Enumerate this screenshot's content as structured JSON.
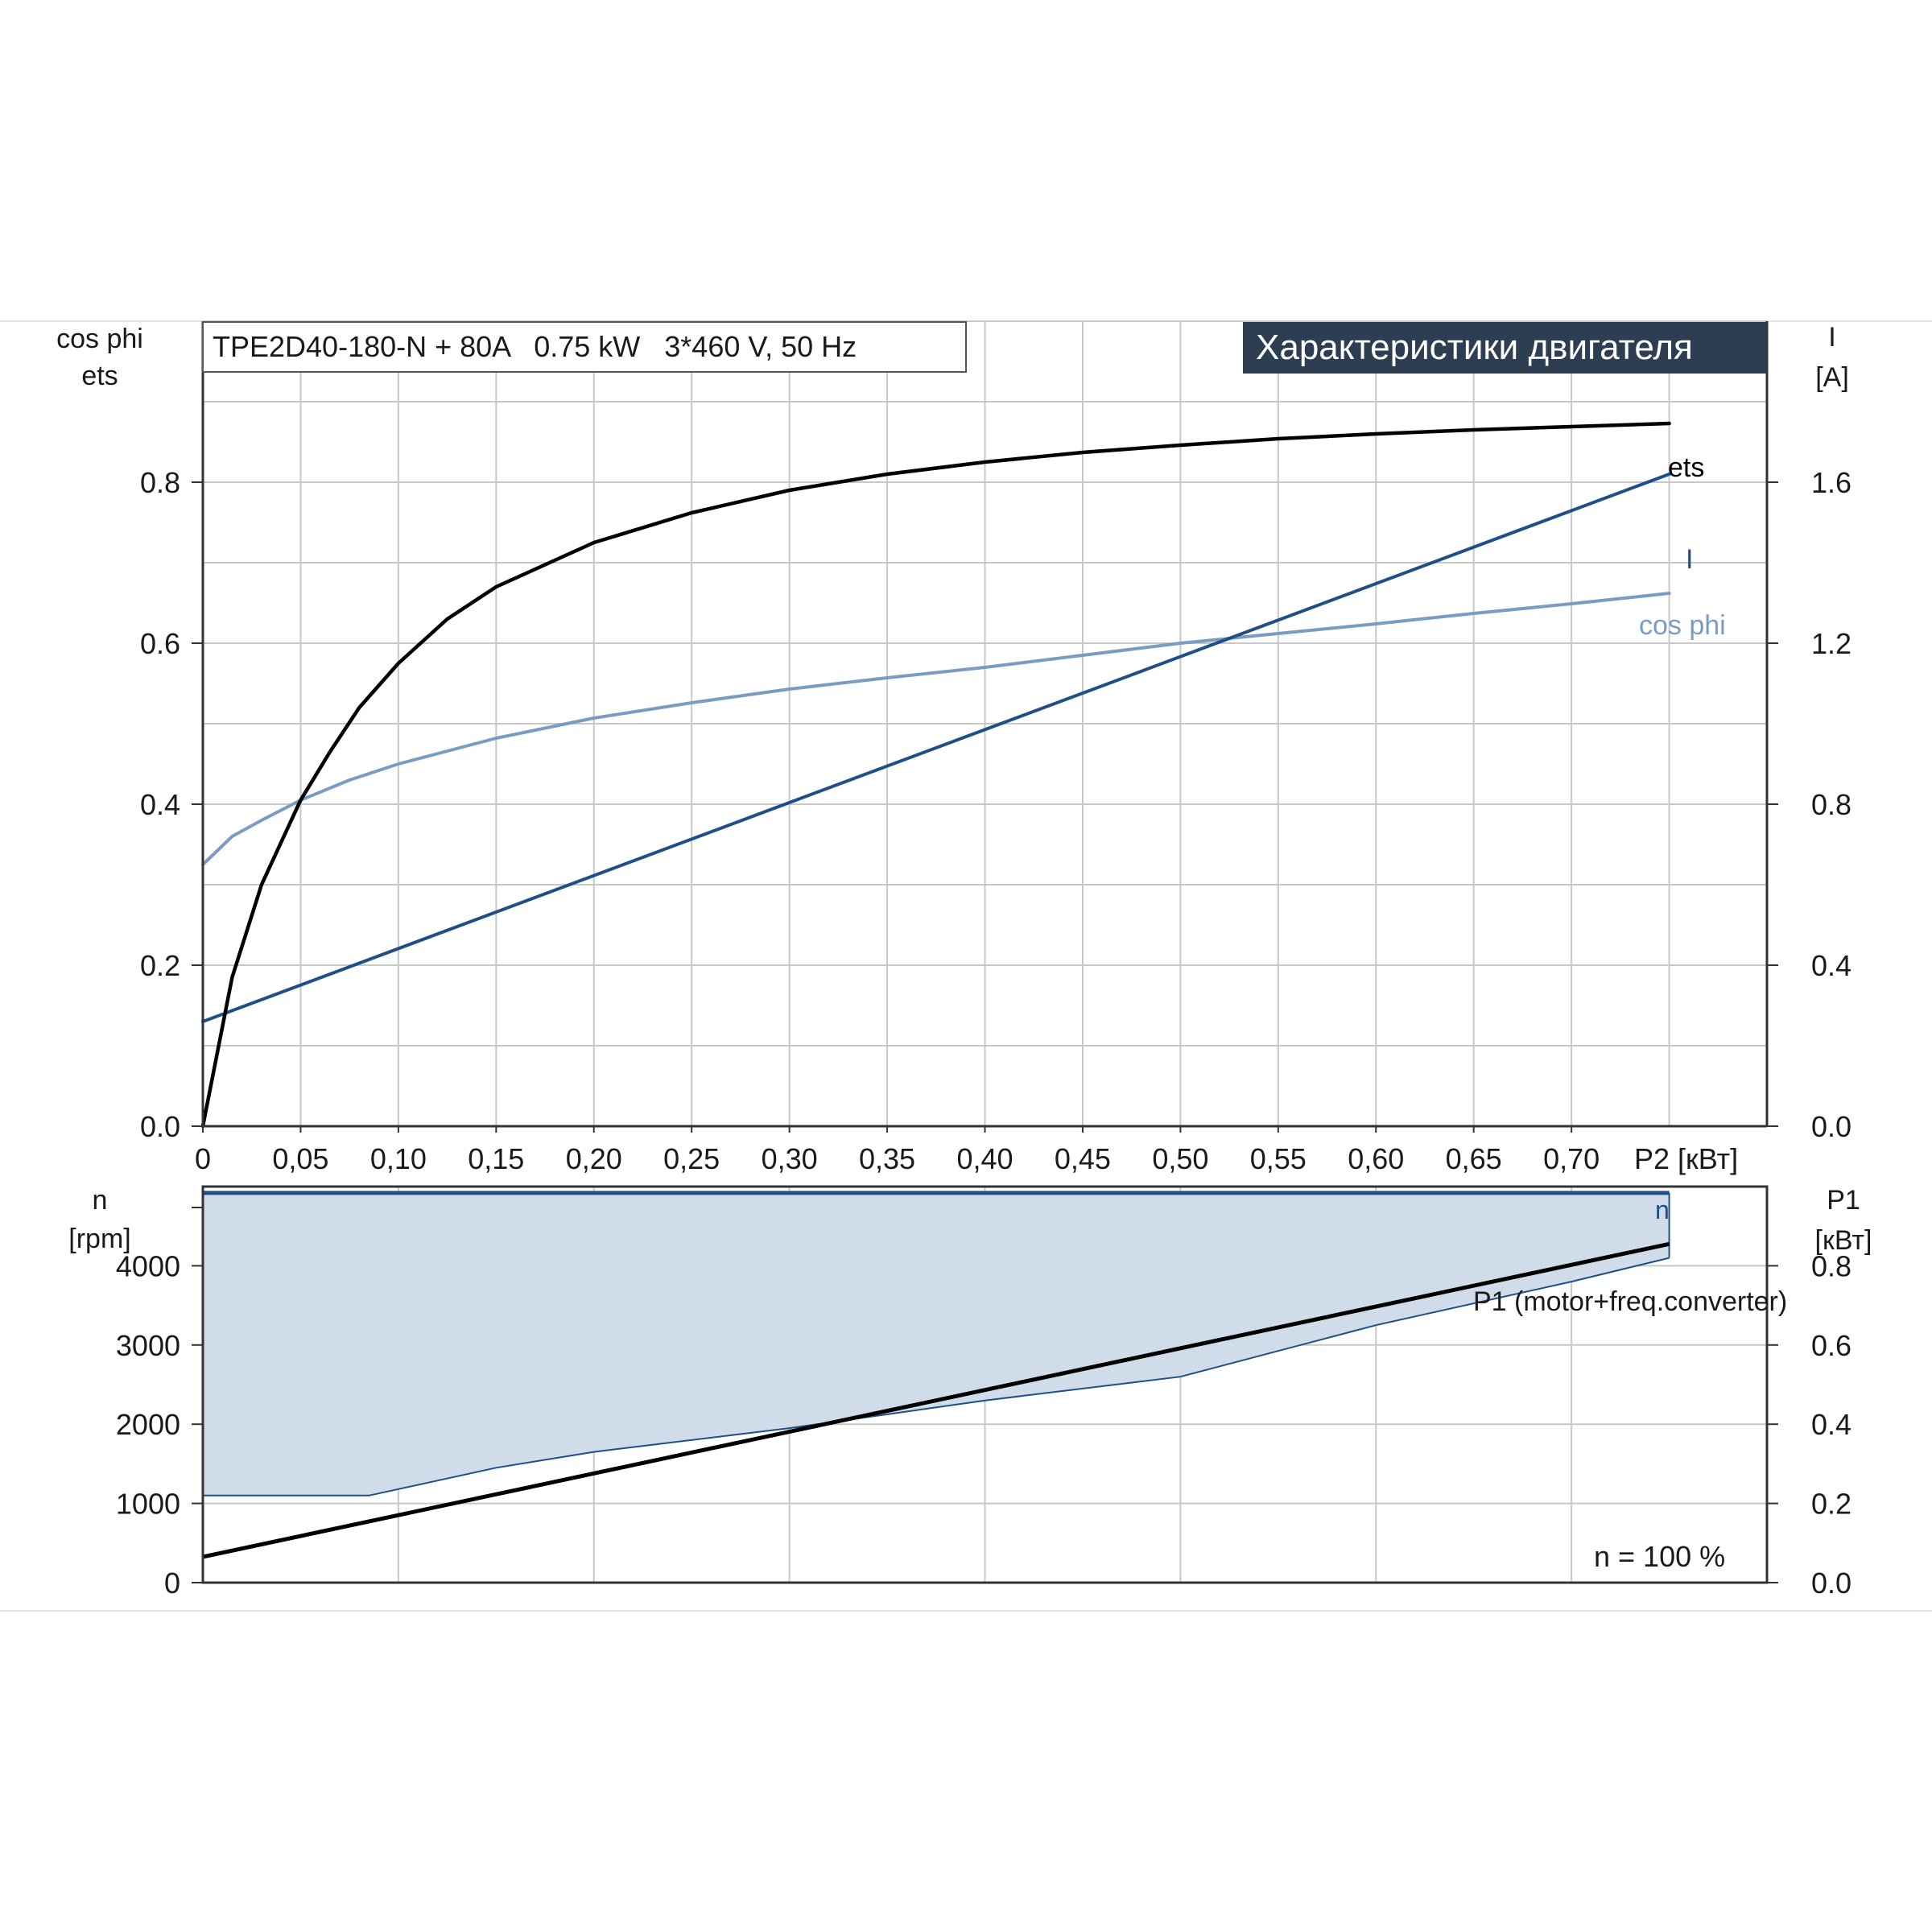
{
  "header": {
    "model": "TPE2D40-180-N + 80A   0.75 kW   3*460 V, 50 Hz",
    "section_title": "Характеристики двигателя"
  },
  "colors": {
    "ets": "#000000",
    "current": "#1f4e89",
    "cosphi": "#7a9cc2",
    "speed_fill": "#d0dcea",
    "speed_line": "#1f4e89",
    "p1": "#000000",
    "grid": "#c8c8c8",
    "title_bg": "#2e3e52"
  },
  "chart_data": [
    {
      "type": "line",
      "title": "Характеристики двигателя",
      "xlabel": "P2 [кВт]",
      "xlim": [
        0,
        0.8
      ],
      "x_ticks": [
        "0",
        "0,05",
        "0,10",
        "0,15",
        "0,20",
        "0,25",
        "0,30",
        "0,35",
        "0,40",
        "0,45",
        "0,50",
        "0,55",
        "0,60",
        "0,65",
        "0,70"
      ],
      "x_tick_values": [
        0,
        0.05,
        0.1,
        0.15,
        0.2,
        0.25,
        0.3,
        0.35,
        0.4,
        0.45,
        0.5,
        0.55,
        0.6,
        0.65,
        0.7
      ],
      "ylabel_left": [
        "cos phi",
        "ets"
      ],
      "ylim_left": [
        0,
        1.0
      ],
      "y_ticks_left": [
        "0.0",
        "0.2",
        "0.4",
        "0.6",
        "0.8"
      ],
      "y_tick_values_left": [
        0,
        0.2,
        0.4,
        0.6,
        0.8
      ],
      "ylabel_right": [
        "I",
        "[A]"
      ],
      "ylim_right": [
        0,
        2.0
      ],
      "y_ticks_right": [
        "0.0",
        "0.4",
        "0.8",
        "1.2",
        "1.6"
      ],
      "y_tick_values_right": [
        0,
        0.4,
        0.8,
        1.2,
        1.6
      ],
      "grid": true,
      "series": [
        {
          "name": "ets",
          "axis": "left",
          "x": [
            0,
            0.015,
            0.03,
            0.05,
            0.065,
            0.08,
            0.1,
            0.125,
            0.15,
            0.2,
            0.25,
            0.3,
            0.35,
            0.4,
            0.45,
            0.5,
            0.55,
            0.6,
            0.65,
            0.7,
            0.75
          ],
          "y": [
            0,
            0.185,
            0.3,
            0.405,
            0.465,
            0.52,
            0.575,
            0.63,
            0.67,
            0.725,
            0.762,
            0.79,
            0.81,
            0.825,
            0.837,
            0.846,
            0.854,
            0.86,
            0.865,
            0.869,
            0.873
          ]
        },
        {
          "name": "I",
          "axis": "right",
          "x": [
            0,
            0.75
          ],
          "y": [
            0.26,
            1.62
          ]
        },
        {
          "name": "cos phi",
          "axis": "left",
          "x": [
            0,
            0.015,
            0.03,
            0.05,
            0.075,
            0.1,
            0.15,
            0.2,
            0.25,
            0.3,
            0.35,
            0.4,
            0.45,
            0.5,
            0.55,
            0.6,
            0.65,
            0.7,
            0.75
          ],
          "y": [
            0.325,
            0.36,
            0.38,
            0.405,
            0.43,
            0.45,
            0.482,
            0.507,
            0.526,
            0.543,
            0.557,
            0.57,
            0.585,
            0.6,
            0.612,
            0.624,
            0.637,
            0.649,
            0.662
          ]
        }
      ]
    },
    {
      "type": "area",
      "x_gridlines": [
        0,
        0.1,
        0.2,
        0.3,
        0.4,
        0.5,
        0.6,
        0.7
      ],
      "xlim": [
        0,
        0.8
      ],
      "ylabel_left": [
        "n",
        "[rpm]"
      ],
      "ylim_left": [
        0,
        5000
      ],
      "y_ticks_left": [
        "0",
        "1000",
        "2000",
        "3000",
        "4000"
      ],
      "y_tick_values_left": [
        0,
        1000,
        2000,
        3000,
        4000
      ],
      "ylabel_right": [
        "P1",
        "[кВт]"
      ],
      "ylim_right": [
        0,
        1.0
      ],
      "y_ticks_right": [
        "0.0",
        "0.2",
        "0.4",
        "0.6",
        "0.8"
      ],
      "y_tick_values_right": [
        0,
        0.2,
        0.4,
        0.6,
        0.8
      ],
      "annotation": "n = 100 %",
      "series": [
        {
          "name": "n",
          "axis": "left",
          "upper": {
            "x": [
              0,
              0.75
            ],
            "y": [
              4920,
              4920
            ]
          },
          "lower": {
            "x": [
              0,
              0.085,
              0.15,
              0.2,
              0.3,
              0.4,
              0.5,
              0.6,
              0.7,
              0.75
            ],
            "y": [
              1100,
              1100,
              1450,
              1650,
              1950,
              2300,
              2600,
              3250,
              3800,
              4100
            ]
          }
        },
        {
          "name": "P1 (motor+freq.converter)",
          "axis": "right",
          "x": [
            0,
            0.75
          ],
          "y": [
            0.065,
            0.855
          ]
        }
      ]
    }
  ]
}
